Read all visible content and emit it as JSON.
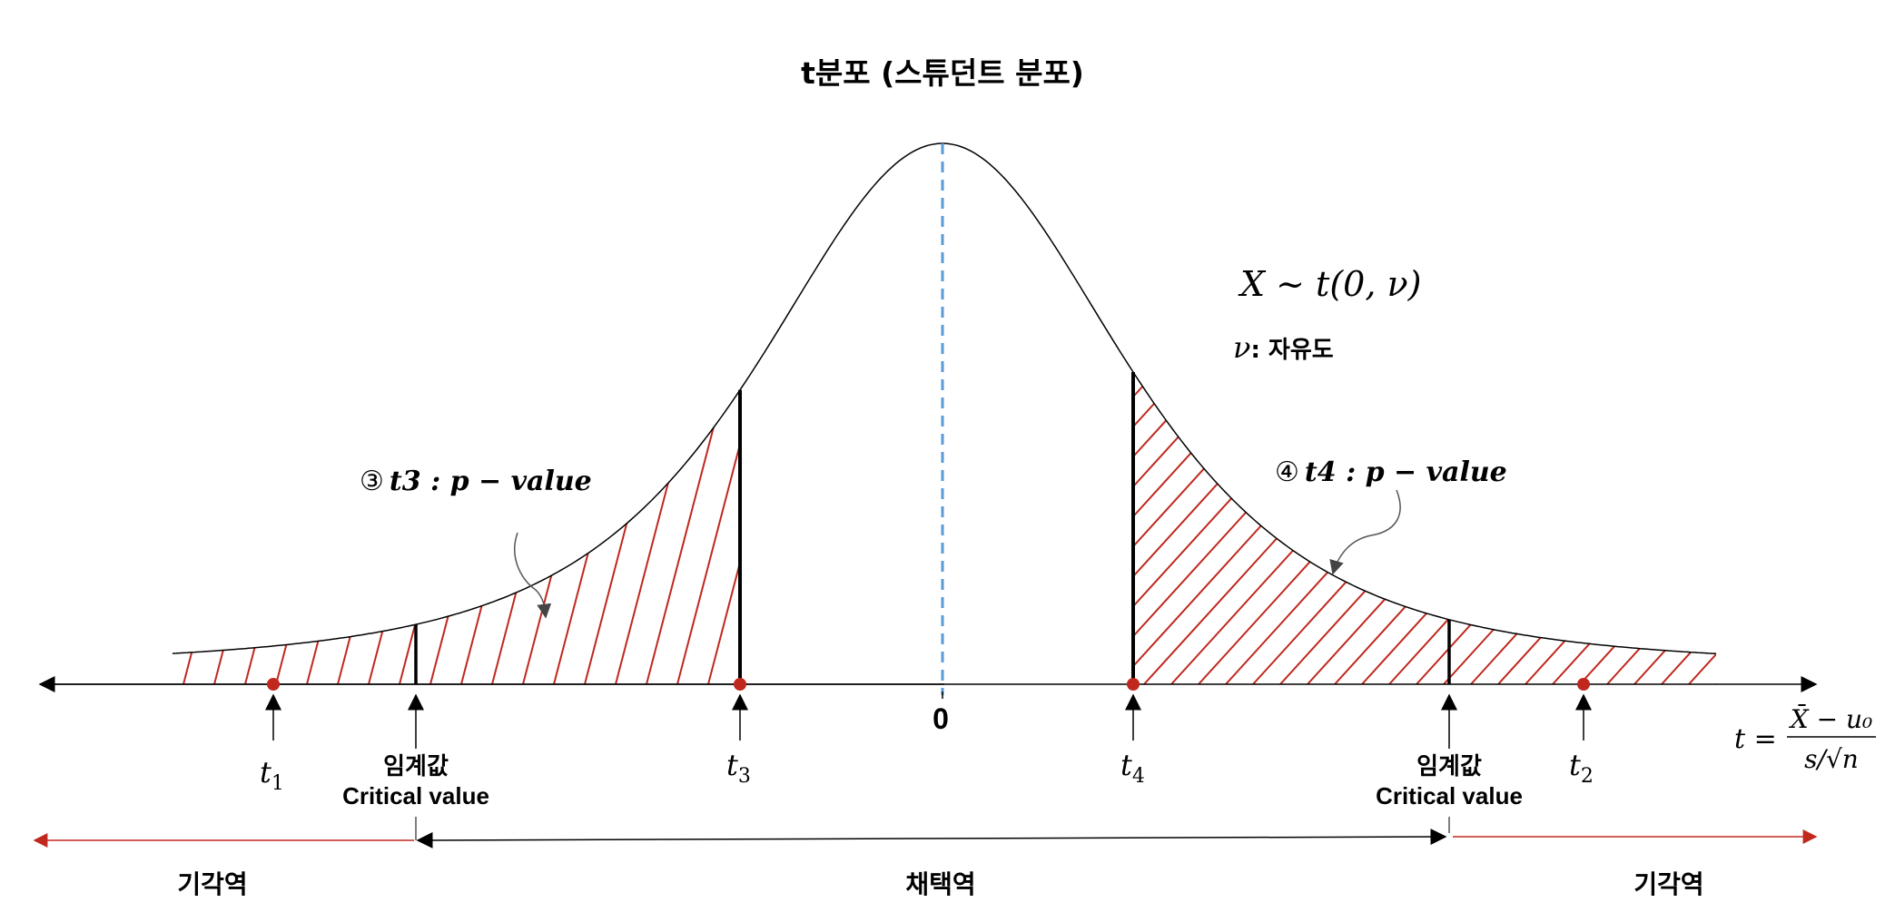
{
  "title": "t분포 (스튜던트 분포)",
  "distribution": {
    "formula": "X ~ t(0, ν)",
    "dof_symbol": "ν",
    "dof_label": ": 자유도"
  },
  "axis": {
    "zero_label": "0",
    "t_formula": {
      "lhs": "t =",
      "numerator": "X̄ − u₀",
      "denominator": "s/√n"
    }
  },
  "annotations": {
    "p3": {
      "circle": "③",
      "text": "t3 : p − value"
    },
    "p4": {
      "circle": "④",
      "text": "t4 : p − value"
    }
  },
  "points": {
    "t1": {
      "base": "t",
      "sub": "1"
    },
    "t2": {
      "base": "t",
      "sub": "2"
    },
    "t3": {
      "base": "t",
      "sub": "3"
    },
    "t4": {
      "base": "t",
      "sub": "4"
    }
  },
  "critical": {
    "kr": "임계값",
    "en": "Critical value"
  },
  "regions": {
    "reject_left": "기각역",
    "accept": "채택역",
    "reject_right": "기각역"
  },
  "colors": {
    "curve": "#000000",
    "hatch": "#c0281e",
    "mean_line": "#5b9bd5",
    "point": "#c0281e",
    "reject_arrow": "#c0281e",
    "accept_arrow": "#000000"
  }
}
